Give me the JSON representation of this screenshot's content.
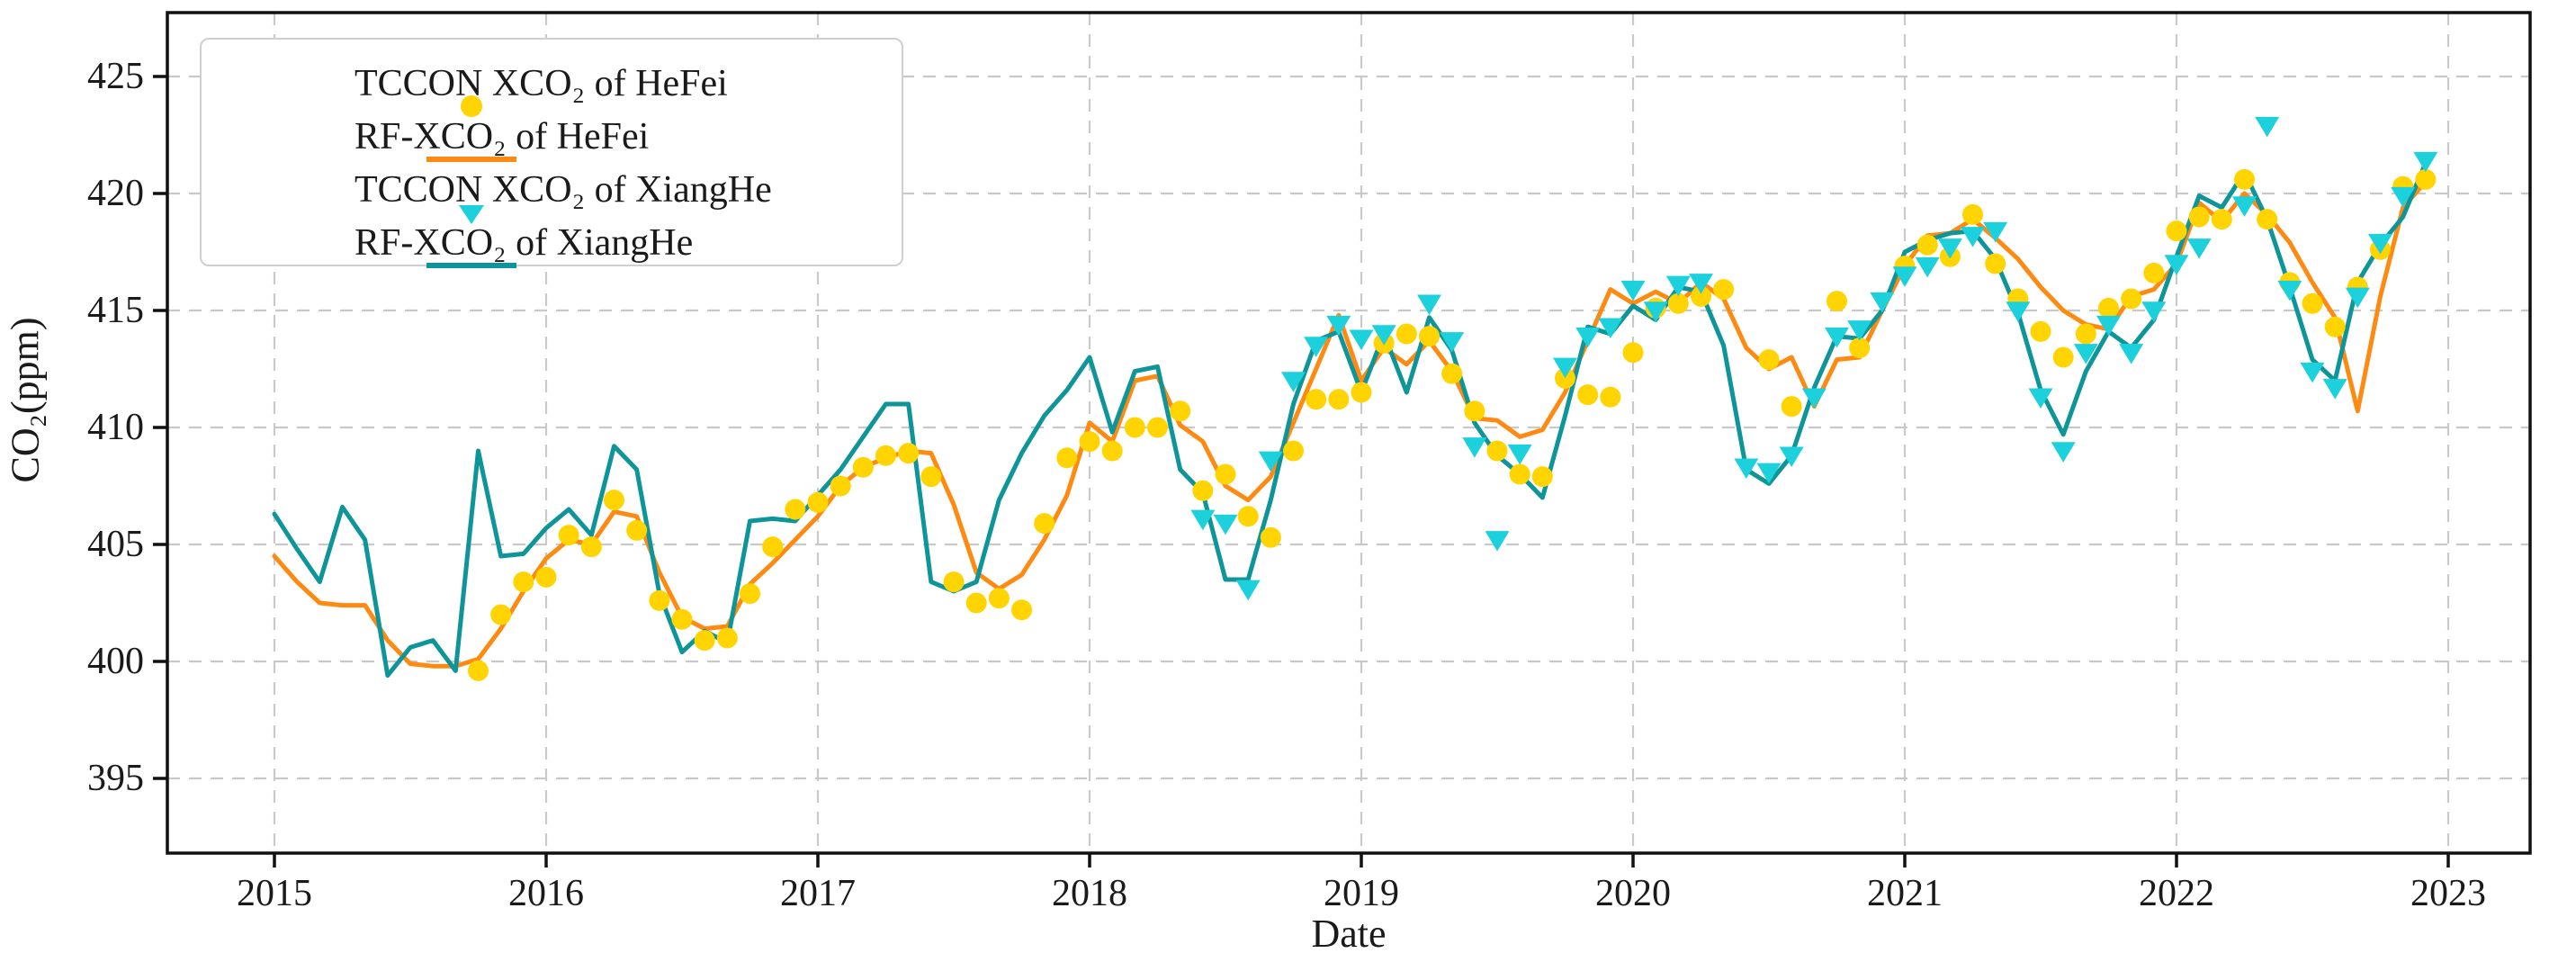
{
  "axes": {
    "y_label": "CO₂(ppm)",
    "x_label": "Date",
    "y_ticks": [
      395,
      400,
      405,
      410,
      415,
      420,
      425
    ],
    "x_ticks": [
      2015,
      2016,
      2017,
      2018,
      2019,
      2020,
      2021,
      2022,
      2023
    ],
    "y_range_ppm": [
      391.8,
      427.7
    ],
    "x_range_year": [
      2014.61,
      2023.31
    ]
  },
  "legend": {
    "items": [
      {
        "label": "TCCON XCO₂ of HeFei",
        "marker": "dot",
        "color": "#FFD400"
      },
      {
        "label": "RF-XCO₂ of HeFei",
        "marker": "line",
        "color": "#FF8A12"
      },
      {
        "label": "TCCON XCO₂ of XiangHe",
        "marker": "triangle-down",
        "color": "#1CD1DC"
      },
      {
        "label": "RF-XCO₂ of XiangHe",
        "marker": "line",
        "color": "#0E9599"
      }
    ]
  },
  "chart_data": {
    "type": "line",
    "x_start_month": "2015-01",
    "x_end_month": "2022-12",
    "x_interval": "monthly",
    "x_count": 96,
    "title": "",
    "xlabel": "Date",
    "ylabel": "CO₂(ppm)",
    "ylim": [
      391.8,
      427.7
    ],
    "grid": "dashed",
    "legend_position": "upper-left",
    "series": [
      {
        "name": "TCCON XCO₂ of HeFei",
        "kind": "scatter",
        "marker": "circle",
        "color": "#FFD400",
        "values": [
          null,
          null,
          null,
          null,
          null,
          null,
          null,
          null,
          null,
          399.6,
          402.0,
          403.4,
          403.6,
          405.4,
          404.9,
          406.9,
          405.6,
          402.6,
          401.8,
          400.9,
          401.0,
          402.9,
          404.9,
          406.5,
          406.8,
          407.5,
          408.3,
          408.8,
          408.9,
          407.9,
          403.4,
          402.5,
          402.7,
          402.2,
          405.9,
          408.7,
          409.4,
          409.0,
          410.0,
          410.0,
          410.7,
          407.3,
          408.0,
          406.2,
          405.3,
          409.0,
          411.2,
          411.2,
          411.5,
          413.6,
          414.0,
          413.9,
          412.3,
          410.7,
          409.0,
          408.0,
          407.9,
          412.1,
          411.4,
          411.3,
          413.2,
          415.1,
          415.3,
          415.6,
          415.9,
          null,
          412.9,
          410.9,
          null,
          415.4,
          413.4,
          null,
          416.9,
          417.8,
          417.3,
          419.1,
          417.0,
          415.5,
          414.1,
          413.0,
          414.0,
          415.1,
          415.5,
          416.6,
          418.4,
          419.0,
          418.9,
          420.6,
          418.9,
          416.2,
          415.3,
          414.3,
          416.0,
          417.6,
          420.3,
          420.6
        ]
      },
      {
        "name": "RF-XCO₂ of HeFei",
        "kind": "line",
        "color": "#FF8A12",
        "values": [
          404.5,
          403.4,
          402.5,
          402.4,
          402.4,
          400.9,
          399.9,
          399.8,
          399.8,
          400.1,
          401.4,
          403.0,
          404.4,
          405.2,
          405.0,
          406.4,
          406.2,
          403.8,
          401.9,
          401.4,
          401.5,
          403.3,
          404.2,
          405.2,
          406.2,
          407.5,
          408.3,
          408.7,
          409.0,
          408.9,
          406.7,
          403.8,
          403.1,
          403.7,
          405.2,
          407.1,
          410.2,
          409.4,
          412.0,
          412.2,
          410.1,
          409.4,
          407.5,
          406.9,
          407.9,
          410.2,
          412.5,
          414.8,
          412.0,
          413.4,
          412.7,
          413.7,
          412.4,
          410.4,
          410.3,
          409.6,
          409.9,
          411.5,
          413.7,
          415.9,
          415.3,
          415.8,
          415.3,
          416.2,
          415.5,
          413.4,
          412.5,
          413.0,
          410.9,
          412.9,
          413.0,
          415.0,
          416.9,
          418.2,
          418.3,
          418.9,
          418.1,
          417.2,
          416.0,
          415.0,
          414.4,
          414.2,
          415.6,
          415.9,
          417.0,
          419.6,
          418.8,
          420.0,
          419.1,
          417.9,
          416.2,
          414.7,
          410.7,
          415.6,
          419.4,
          420.5
        ]
      },
      {
        "name": "TCCON XCO₂ of XiangHe",
        "kind": "scatter",
        "marker": "triangle-down",
        "color": "#1CD1DC",
        "values": [
          null,
          null,
          null,
          null,
          null,
          null,
          null,
          null,
          null,
          null,
          null,
          null,
          null,
          null,
          null,
          null,
          null,
          null,
          null,
          null,
          null,
          null,
          null,
          null,
          null,
          null,
          null,
          null,
          null,
          null,
          null,
          null,
          null,
          null,
          null,
          null,
          null,
          null,
          null,
          null,
          null,
          406.1,
          405.9,
          403.1,
          408.6,
          412.0,
          413.5,
          414.4,
          413.8,
          414.0,
          null,
          415.3,
          413.7,
          409.2,
          405.2,
          408.9,
          null,
          412.6,
          413.9,
          414.3,
          415.9,
          415.0,
          416.1,
          416.2,
          null,
          408.3,
          408.1,
          408.8,
          411.3,
          413.9,
          414.2,
          415.4,
          416.5,
          416.9,
          417.7,
          418.2,
          418.4,
          415.0,
          411.3,
          409.0,
          413.2,
          414.4,
          413.2,
          415.0,
          417.0,
          417.7,
          null,
          419.5,
          422.9,
          415.9,
          412.4,
          411.7,
          415.6,
          417.9,
          419.9,
          421.4
        ]
      },
      {
        "name": "RF-XCO₂ of XiangHe",
        "kind": "line",
        "color": "#0E9599",
        "values": [
          406.3,
          404.8,
          403.4,
          406.6,
          405.2,
          399.4,
          400.6,
          400.9,
          399.6,
          409.0,
          404.5,
          404.6,
          405.7,
          406.5,
          405.4,
          409.2,
          408.2,
          402.9,
          400.4,
          401.3,
          400.8,
          406.0,
          406.1,
          406.0,
          407.1,
          408.2,
          409.6,
          411.0,
          411.0,
          403.4,
          403.0,
          403.4,
          406.9,
          408.9,
          410.5,
          411.6,
          413.0,
          409.8,
          412.4,
          412.6,
          408.2,
          407.2,
          403.5,
          403.5,
          406.9,
          411.0,
          413.7,
          414.1,
          411.5,
          414.0,
          411.5,
          414.7,
          413.3,
          410.2,
          408.8,
          408.0,
          407.0,
          410.5,
          414.3,
          414.0,
          415.2,
          414.6,
          416.0,
          415.8,
          413.5,
          408.2,
          407.6,
          408.8,
          411.7,
          413.9,
          413.8,
          415.0,
          417.5,
          418.0,
          418.3,
          418.4,
          417.2,
          414.9,
          411.6,
          409.7,
          412.4,
          414.1,
          413.4,
          414.6,
          417.3,
          419.9,
          419.4,
          420.9,
          418.9,
          416.0,
          412.9,
          412.0,
          416.2,
          417.8,
          419.0,
          421.3
        ]
      }
    ]
  },
  "style": {
    "grid_color": "#c9c9c9",
    "frame_color": "#111111",
    "background": "#ffffff"
  }
}
